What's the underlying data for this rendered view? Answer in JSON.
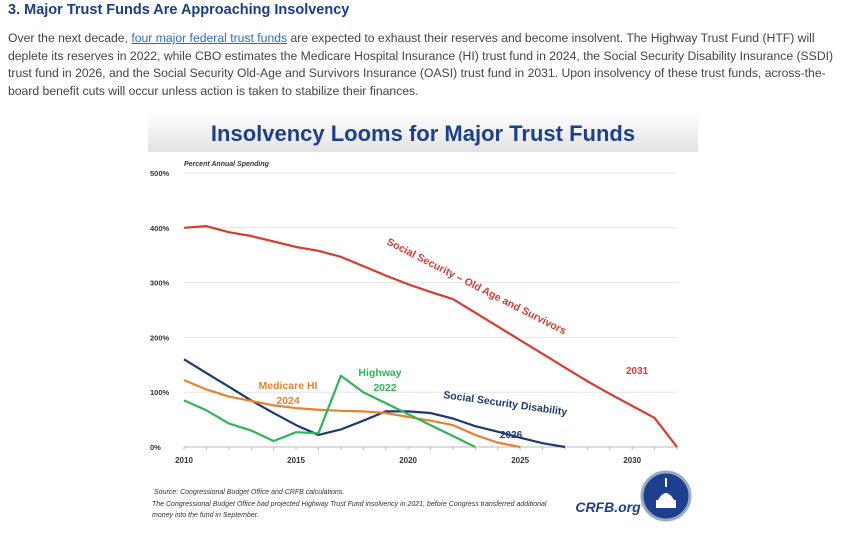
{
  "article": {
    "heading": "3. Major Trust Funds Are Approaching Insolvency",
    "p_before": "Over the next decade, ",
    "link": "four major federal trust funds",
    "p_after": " are expected to exhaust their reserves and become insolvent. The Highway Trust Fund (HTF) will deplete its reserves in 2022, while CBO estimates the Medicare Hospital Insurance (HI) trust fund in 2024, the Social Security Disability Insurance (SSDI) trust fund in 2026, and the Social Security Old-Age and Survivors Insurance (OASI) trust fund in 2031. Upon insolvency of these trust funds, across-the-board benefit cuts will occur unless action is taken to stabilize their finances."
  },
  "chart_data": {
    "type": "line",
    "title": "Insolvency Looms for Major Trust Funds",
    "ylabel": "Percent Annual Spending",
    "xlabel": "",
    "xlim": [
      2010,
      2032
    ],
    "ylim": [
      0,
      500
    ],
    "xticks": [
      "2010",
      "2015",
      "2020",
      "2025",
      "2030"
    ],
    "yticks": [
      "0%",
      "100%",
      "200%",
      "300%",
      "400%",
      "500%"
    ],
    "series": [
      {
        "name": "Social Security – Old Age and Survivors",
        "label_year": "2031",
        "color": "#d93a32",
        "x0": 2010,
        "values": [
          400,
          403,
          392,
          385,
          375,
          365,
          358,
          347,
          330,
          313,
          297,
          283,
          270,
          245,
          220,
          195,
          170,
          145,
          120,
          97,
          75,
          53,
          0
        ]
      },
      {
        "name": "Social Security Disability",
        "label_year": "2026",
        "color": "#1f3a6e",
        "x0": 2010,
        "values": [
          160,
          135,
          110,
          85,
          62,
          40,
          22,
          32,
          48,
          65,
          65,
          62,
          52,
          38,
          28,
          17,
          7,
          0
        ]
      },
      {
        "name": "Medicare HI",
        "label_year": "2024",
        "color": "#e8822e",
        "x0": 2010,
        "values": [
          122,
          105,
          92,
          84,
          76,
          71,
          68,
          66,
          65,
          62,
          55,
          48,
          40,
          22,
          8,
          0
        ]
      },
      {
        "name": "Highway",
        "label_year": "2022",
        "color": "#2fb55a",
        "x0": 2010,
        "values": [
          85,
          67,
          43,
          30,
          11,
          27,
          25,
          130,
          100,
          80,
          60,
          40,
          20,
          0
        ]
      }
    ],
    "source": "Source: Congressional Budget Office and CRFB calculations.",
    "note": "The Congressional Budget Office had projected Highway Trust Fund insolvency in 2021, before Congress transferred additional money into the fund in September.",
    "logo_text": "CRFB.org"
  }
}
